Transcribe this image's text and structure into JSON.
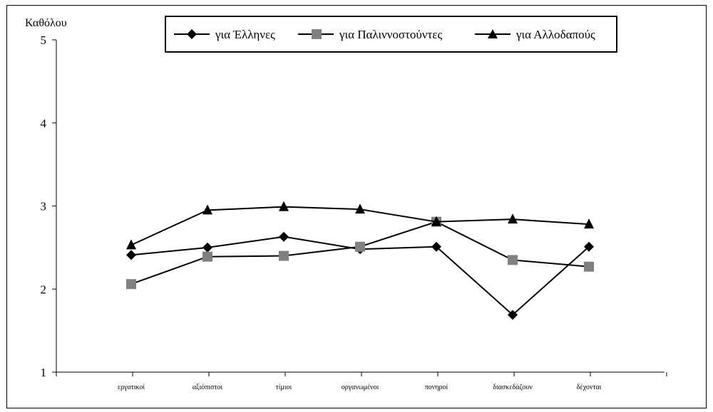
{
  "chart_data": {
    "type": "line",
    "ylabel": "Καθόλου",
    "ylim": [
      1,
      5
    ],
    "yticks": [
      "1",
      "2",
      "3",
      "4",
      "5"
    ],
    "categories": [
      "εργατικοί",
      "αξιόπιστοι",
      "τίμιοι",
      "οργανωμένοι",
      "πονηροί",
      "διασκεδάζουν",
      "δέχονται"
    ],
    "legend_position": "top",
    "grid": false,
    "series": [
      {
        "name": "για Έλληνες",
        "marker": "diamond",
        "color": "#000000",
        "values": [
          2.41,
          2.5,
          2.63,
          2.48,
          2.51,
          1.69,
          2.51
        ]
      },
      {
        "name": "για Παλιννοστούντες",
        "marker": "square",
        "color": "#808080",
        "values": [
          2.06,
          2.39,
          2.4,
          2.51,
          2.81,
          2.35,
          2.27
        ]
      },
      {
        "name": "για Αλλοδαπούς",
        "marker": "triangle",
        "color": "#000000",
        "values": [
          2.53,
          2.95,
          2.99,
          2.96,
          2.81,
          2.84,
          2.78
        ]
      }
    ]
  }
}
